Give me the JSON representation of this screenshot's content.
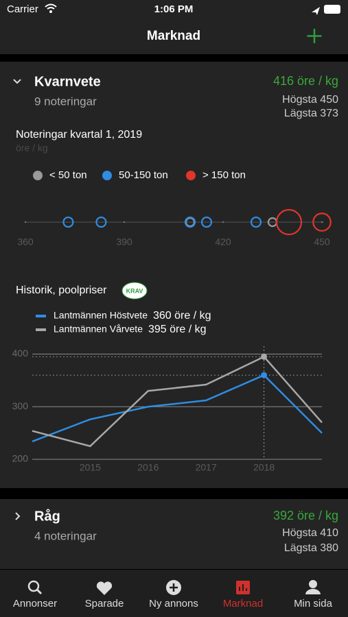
{
  "status_bar": {
    "carrier": "Carrier",
    "time": "1:06 PM"
  },
  "nav": {
    "title": "Marknad"
  },
  "cards": [
    {
      "name": "Kvarnvete",
      "count": "9 noteringar",
      "price": "416 öre / kg",
      "high": "Högsta 450",
      "low": "Lägsta 373"
    },
    {
      "name": "Råg",
      "count": "4 noteringar",
      "price": "392 öre / kg",
      "high": "Högsta 410",
      "low": "Lägsta 380"
    }
  ],
  "chart_data": [
    {
      "type": "scatter",
      "title": "Noteringar kvartal 1, 2019",
      "unit": "öre / kg",
      "series": [
        {
          "name": "< 50 ton",
          "color": "#9a9a9a",
          "x": [
            410,
            435
          ],
          "sizes": [
            45,
            45
          ]
        },
        {
          "name": "50-150 ton",
          "color": "#2f8de4",
          "x": [
            373,
            383,
            410,
            415,
            430
          ],
          "sizes": [
            60,
            60,
            60,
            60,
            60
          ]
        },
        {
          "name": "> 150 ton",
          "color": "#e0362c",
          "x": [
            440,
            450
          ],
          "sizes": [
            400,
            200
          ]
        }
      ],
      "xlim": [
        360,
        450
      ],
      "xticks": [
        360,
        390,
        420,
        450
      ]
    },
    {
      "type": "line",
      "title": "Historik, poolpriser",
      "badge": "KRAV",
      "x": [
        2014,
        2015,
        2016,
        2017,
        2018,
        2019
      ],
      "series": [
        {
          "name": "Lantmännen Höstvete",
          "color": "#2f8de4",
          "values": [
            234,
            276,
            300,
            312,
            360,
            250
          ],
          "current": "360 öre / kg"
        },
        {
          "name": "Lantmännen Vårvete",
          "color": "#a8a8a8",
          "values": [
            254,
            225,
            330,
            342,
            395,
            270
          ],
          "current": "395 öre / kg"
        }
      ],
      "xlim": [
        2014,
        2019
      ],
      "xticks": [
        2015,
        2016,
        2017,
        2018
      ],
      "ylim": [
        200,
        415
      ],
      "yticks": [
        200,
        300,
        400
      ],
      "highlight_x": 2018
    }
  ],
  "tab_bar": {
    "items": [
      "Annonser",
      "Sparade",
      "Ny annons",
      "Marknad",
      "Min sida"
    ],
    "active": 3
  }
}
